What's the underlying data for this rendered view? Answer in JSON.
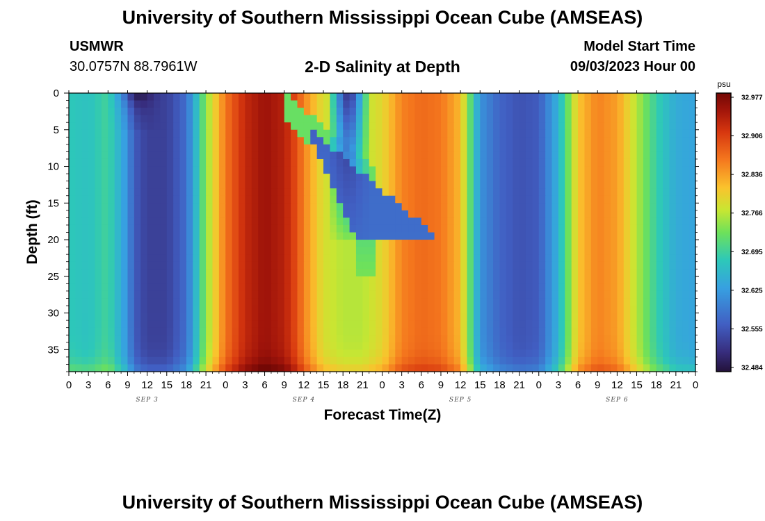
{
  "header": {
    "title": "University of Southern Mississippi Ocean Cube (AMSEAS)",
    "station_name": "USMWR",
    "station_coords": "30.0757N  88.7961W",
    "plot_title": "2-D Salinity at Depth",
    "model_start_label": "Model Start Time",
    "model_start_value": "09/03/2023 Hour 00"
  },
  "footer": {
    "title": "University of Southern Mississippi Ocean Cube (AMSEAS)"
  },
  "chart_data": {
    "type": "heatmap",
    "variable": "salinity",
    "xlabel": "Forecast Time(Z)",
    "ylabel": "Depth (ft)",
    "x_range_hours": [
      0,
      96
    ],
    "x_tick_step_hours": 3,
    "x_tick_labels": [
      "0",
      "3",
      "6",
      "9",
      "12",
      "15",
      "18",
      "21",
      "0",
      "3",
      "6",
      "9",
      "12",
      "15",
      "18",
      "21",
      "0",
      "3",
      "6",
      "9",
      "12",
      "15",
      "18",
      "21",
      "0",
      "3",
      "6",
      "9",
      "12",
      "15",
      "18",
      "21",
      "0"
    ],
    "day_labels": [
      {
        "label": "SEP 3",
        "hour": 12
      },
      {
        "label": "SEP 4",
        "hour": 36
      },
      {
        "label": "SEP 5",
        "hour": 60
      },
      {
        "label": "SEP 6",
        "hour": 84
      }
    ],
    "y_range_ft": [
      0,
      38
    ],
    "y_inverted": true,
    "y_ticks": [
      0,
      5,
      10,
      15,
      20,
      25,
      30,
      35
    ],
    "colorbar": {
      "unit": "psu",
      "min": 32.45,
      "max": 33.0,
      "ticks": [
        "32.977",
        "32.906",
        "32.836",
        "32.766",
        "32.695",
        "32.625",
        "32.555",
        "32.484"
      ]
    },
    "column_profile_hours": [
      0,
      3,
      6,
      9,
      10,
      12,
      15,
      18,
      21,
      24,
      27,
      30,
      33,
      35,
      36,
      39,
      42,
      45,
      48,
      51,
      54,
      57,
      60,
      63,
      66,
      69,
      72,
      75,
      78,
      81,
      84,
      87,
      90,
      93,
      96
    ],
    "column_profile_psu": [
      32.67,
      32.66,
      32.69,
      32.6,
      32.54,
      32.51,
      32.51,
      32.56,
      32.74,
      32.87,
      32.94,
      32.97,
      32.95,
      32.9,
      32.86,
      32.78,
      32.76,
      32.76,
      32.79,
      32.86,
      32.88,
      32.87,
      32.82,
      32.6,
      32.55,
      32.53,
      32.54,
      32.64,
      32.81,
      32.86,
      32.84,
      32.76,
      32.68,
      32.63,
      32.62
    ],
    "features": [
      {
        "name": "surface low-salinity pocket",
        "hour_range": [
          8,
          12
        ],
        "depth_range_ft": [
          0,
          4
        ],
        "psu": 32.48
      },
      {
        "name": "intrusion of fresher water",
        "hour_range": [
          36,
          45
        ],
        "depth_range_ft": [
          0,
          20
        ],
        "psu": 32.55
      },
      {
        "name": "bottom high-salinity layer",
        "depth_ft": 38,
        "psu": 32.9
      }
    ]
  }
}
